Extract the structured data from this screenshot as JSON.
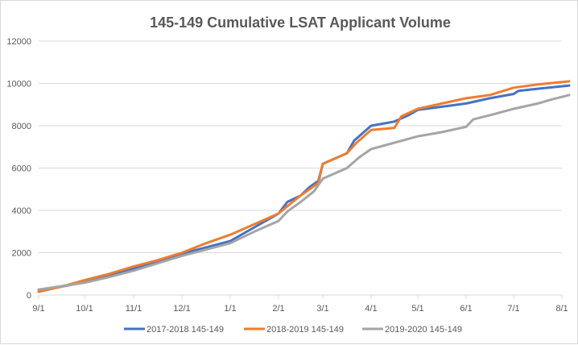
{
  "chart_data": {
    "type": "line",
    "title": "145-149 Cumulative LSAT Applicant Volume",
    "xlabel": "",
    "ylabel": "",
    "x_tick_labels": [
      "9/1",
      "10/1",
      "11/1",
      "12/1",
      "1/1",
      "2/1",
      "3/1",
      "4/1",
      "5/1",
      "6/1",
      "7/1",
      "8/1"
    ],
    "y_tick_labels": [
      "0",
      "2000",
      "4000",
      "6000",
      "8000",
      "10000",
      "12000"
    ],
    "y_ticks": [
      0,
      2000,
      4000,
      6000,
      8000,
      10000,
      12000
    ],
    "ylim": [
      0,
      12000
    ],
    "x_unit": "months since 9/1",
    "xlim": [
      0,
      11.15
    ],
    "grid": "horizontal",
    "legend_position": "bottom",
    "series": [
      {
        "name": "2017-2018 145-149",
        "color": "#4472C4",
        "points": [
          [
            0,
            230
          ],
          [
            0.5,
            400
          ],
          [
            1,
            600
          ],
          [
            1.5,
            900
          ],
          [
            2,
            1250
          ],
          [
            2.5,
            1550
          ],
          [
            3,
            1950
          ],
          [
            3.5,
            2250
          ],
          [
            4,
            2550
          ],
          [
            4.5,
            3200
          ],
          [
            5,
            3850
          ],
          [
            5.2,
            4400
          ],
          [
            5.5,
            4700
          ],
          [
            5.7,
            5100
          ],
          [
            5.9,
            5400
          ],
          [
            6,
            6200
          ],
          [
            6.5,
            6700
          ],
          [
            6.65,
            7300
          ],
          [
            7,
            8000
          ],
          [
            7.5,
            8200
          ],
          [
            7.8,
            8500
          ],
          [
            8,
            8750
          ],
          [
            8.5,
            8900
          ],
          [
            9,
            9050
          ],
          [
            9.5,
            9300
          ],
          [
            10,
            9500
          ],
          [
            10.1,
            9650
          ],
          [
            10.5,
            9750
          ],
          [
            11.15,
            9900
          ]
        ]
      },
      {
        "name": "2018-2019 145-149",
        "color": "#ED7D31",
        "points": [
          [
            0,
            150
          ],
          [
            0.5,
            400
          ],
          [
            0.75,
            550
          ],
          [
            1,
            700
          ],
          [
            1.5,
            1000
          ],
          [
            2,
            1350
          ],
          [
            2.5,
            1650
          ],
          [
            3,
            2000
          ],
          [
            3.5,
            2450
          ],
          [
            4,
            2850
          ],
          [
            4.5,
            3350
          ],
          [
            5,
            3850
          ],
          [
            5.2,
            4200
          ],
          [
            5.5,
            4700
          ],
          [
            5.7,
            5000
          ],
          [
            5.9,
            5300
          ],
          [
            6,
            6200
          ],
          [
            6.5,
            6700
          ],
          [
            6.7,
            7200
          ],
          [
            7,
            7800
          ],
          [
            7.5,
            7900
          ],
          [
            7.65,
            8450
          ],
          [
            8,
            8800
          ],
          [
            8.5,
            9050
          ],
          [
            9,
            9300
          ],
          [
            9.5,
            9450
          ],
          [
            10,
            9800
          ],
          [
            10.5,
            9950
          ],
          [
            11.15,
            10100
          ]
        ]
      },
      {
        "name": "2019-2020 145-149",
        "color": "#A5A5A5",
        "points": [
          [
            0,
            260
          ],
          [
            0.5,
            420
          ],
          [
            1,
            580
          ],
          [
            1.5,
            850
          ],
          [
            2,
            1150
          ],
          [
            2.5,
            1500
          ],
          [
            3,
            1850
          ],
          [
            3.5,
            2150
          ],
          [
            4,
            2450
          ],
          [
            4.5,
            3000
          ],
          [
            5,
            3500
          ],
          [
            5.2,
            3950
          ],
          [
            5.5,
            4400
          ],
          [
            5.8,
            4900
          ],
          [
            6,
            5500
          ],
          [
            6.5,
            6000
          ],
          [
            6.75,
            6500
          ],
          [
            7,
            6900
          ],
          [
            7.5,
            7200
          ],
          [
            8,
            7500
          ],
          [
            8.5,
            7700
          ],
          [
            9,
            7950
          ],
          [
            9.15,
            8300
          ],
          [
            9.5,
            8500
          ],
          [
            10,
            8800
          ],
          [
            10.5,
            9050
          ],
          [
            10.8,
            9250
          ],
          [
            11.15,
            9450
          ]
        ]
      }
    ]
  }
}
